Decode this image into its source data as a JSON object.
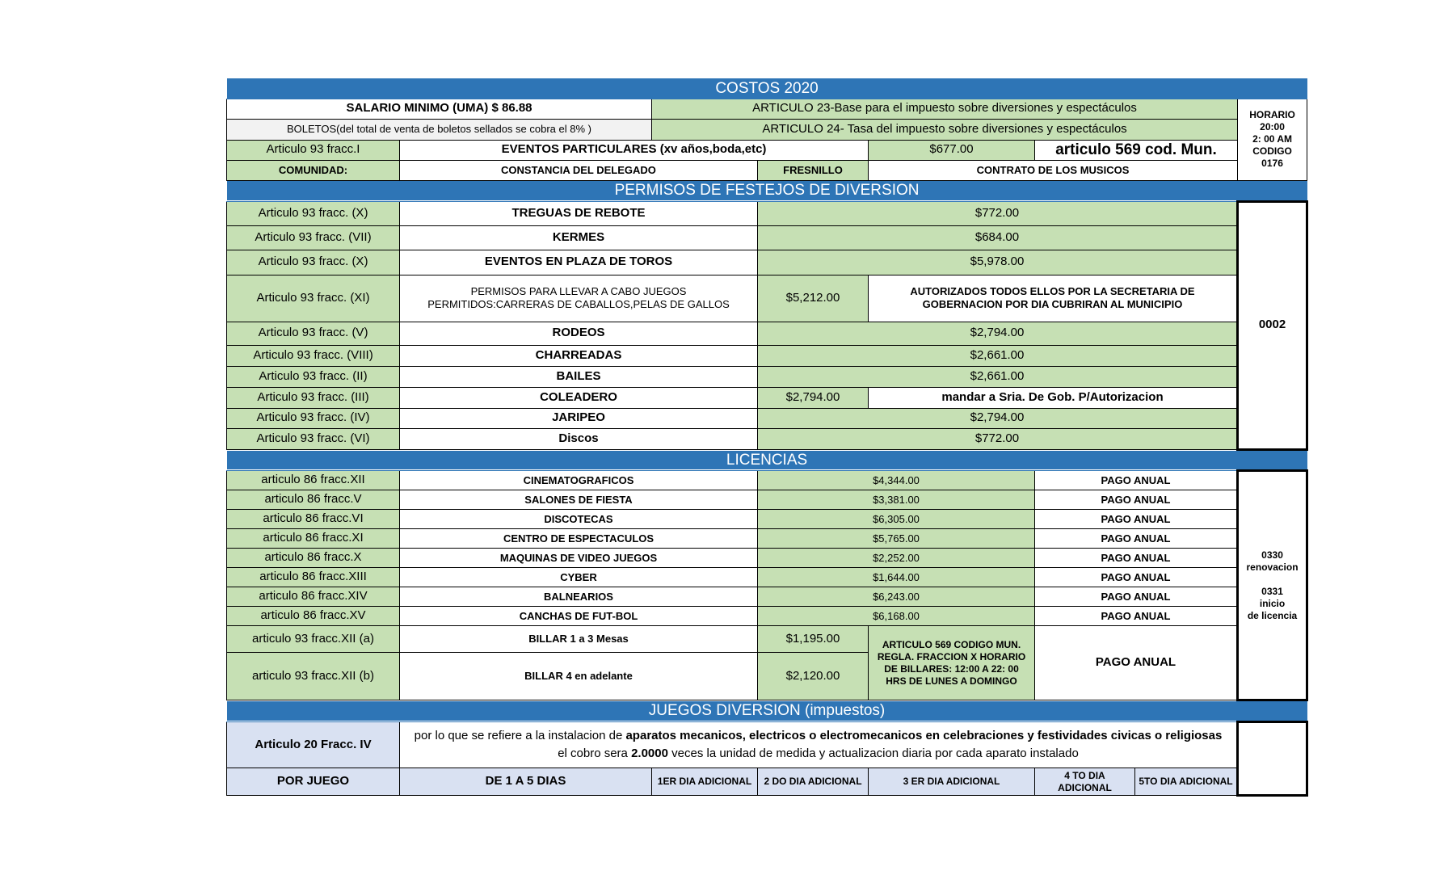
{
  "title": "COSTOS 2020",
  "salario": "SALARIO MINIMO (UMA)     $ 86.88",
  "boletos": "BOLETOS(del total de venta de boletos sellados se cobra el  8% )",
  "art23": "ARTICULO 23-Base para el impuesto sobre diversiones y espectáculos",
  "art24": "ARTICULO 24- Tasa del impuesto sobre diversiones y espectáculos",
  "horario_lines": [
    "HORARIO",
    "20:00",
    "2: 00 AM",
    "CODIGO",
    "0176"
  ],
  "eventos_row": {
    "article": "Articulo 93  fracc.I",
    "name": "EVENTOS PARTICULARES (xv años,boda,etc)",
    "cost": "$677.00",
    "note": "articulo 569 cod. Mun."
  },
  "comunidad_row": {
    "label": "COMUNIDAD:",
    "constancia": "CONSTANCIA DEL DELEGADO",
    "place": "FRESNILLO",
    "contrato": "CONTRATO DE LOS MUSICOS"
  },
  "permisos": {
    "header": "PERMISOS DE FESTEJOS DE DIVERSION",
    "code": "0002",
    "rows": [
      {
        "article": "Articulo 93 fracc.   (X)",
        "name": "TREGUAS DE REBOTE",
        "cost": "$772.00"
      },
      {
        "article": "Articulo 93 fracc.   (VII)",
        "name": "KERMES",
        "cost": "$684.00"
      },
      {
        "article": "Articulo 93 fracc.   (X)",
        "name": "EVENTOS EN PLAZA DE TOROS",
        "cost": "$5,978.00"
      },
      {
        "article": "Articulo 93 fracc.   (XI)",
        "name_lines": [
          "PERMISOS PARA LLEVAR A CABO JUEGOS",
          "PERMITIDOS:CARRERAS DE CABALLOS,PELAS DE GALLOS"
        ],
        "cost": "$5,212.00",
        "note_lines": [
          "AUTORIZADOS TODOS ELLOS POR LA SECRETARIA DE",
          "GOBERNACION POR DIA CUBRIRAN AL MUNICIPIO"
        ]
      },
      {
        "article": "Articulo 93 fracc.   (V)",
        "name": "RODEOS",
        "cost": "$2,794.00"
      },
      {
        "article": "Articulo 93 fracc.   (VIII)",
        "name": "CHARREADAS",
        "cost": "$2,661.00"
      },
      {
        "article": "Articulo 93 fracc.   (II)",
        "name": "BAILES",
        "cost": "$2,661.00"
      },
      {
        "article": "Articulo 93 fracc.  (III)",
        "name": "COLEADERO",
        "cost": "$2,794.00",
        "note": "mandar a Sria. De Gob. P/Autorizacion"
      },
      {
        "article": "Articulo 93  fracc. (IV)",
        "name": "JARIPEO",
        "cost": "$2,794.00"
      },
      {
        "article": "Articulo 93 fracc.  (VI)",
        "name": "Discos",
        "cost": "$772.00"
      }
    ]
  },
  "licencias": {
    "header": "LICENCIAS",
    "code_lines": [
      "0330",
      "renovacion",
      "",
      "0331",
      "inicio",
      "de licencia"
    ],
    "rows": [
      {
        "article": "articulo 86  fracc.XII",
        "name": "CINEMATOGRAFICOS",
        "cost": "$4,344.00",
        "payment": "PAGO ANUAL"
      },
      {
        "article": "articulo 86  fracc.V",
        "name": "SALONES DE FIESTA",
        "cost": "$3,381.00",
        "payment": "PAGO ANUAL"
      },
      {
        "article": "articulo 86  fracc.VI",
        "name": "DISCOTECAS",
        "cost": "$6,305.00",
        "payment": "PAGO ANUAL"
      },
      {
        "article": "articulo 86  fracc.XI",
        "name": "CENTRO DE ESPECTACULOS",
        "cost": "$5,765.00",
        "payment": "PAGO ANUAL"
      },
      {
        "article": "articulo 86  fracc.X",
        "name": "MAQUINAS DE VIDEO JUEGOS",
        "cost": "$2,252.00",
        "payment": "PAGO ANUAL"
      },
      {
        "article": "articulo 86  fracc.XIII",
        "name": "CYBER",
        "cost": "$1,644.00",
        "payment": "PAGO ANUAL"
      },
      {
        "article": "articulo 86  fracc.XIV",
        "name": "BALNEARIOS",
        "cost": "$6,243.00",
        "payment": "PAGO ANUAL"
      },
      {
        "article": "articulo 86  fracc.XV",
        "name": "CANCHAS DE FUT-BOL",
        "cost": "$6,168.00",
        "payment": "PAGO ANUAL"
      }
    ],
    "billar": [
      {
        "article": "articulo 93 fracc.XII (a)",
        "name": "BILLAR 1 a 3 Mesas",
        "cost": "$1,195.00"
      },
      {
        "article": "articulo  93 fracc.XII (b)",
        "name": "BILLAR   4 en adelante",
        "cost": "$2,120.00"
      }
    ],
    "billar_note_lines": [
      "ARTICULO 569 CODIGO MUN.",
      "REGLA. FRACCION X HORARIO",
      "DE BILLARES: 12:00 A 22: 00",
      "HRS DE LUNES A DOMINGO"
    ],
    "billar_payment": "PAGO ANUAL"
  },
  "juegos": {
    "header": "JUEGOS DIVERSION (impuestos)",
    "article": "Articulo 20 Fracc. IV",
    "description": [
      {
        "text": "por lo que se refiere a la instalacion de ",
        "bold": false
      },
      {
        "text": "aparatos mecanicos, electricos o electromecanicos en celebraciones y festividades civicas o religiosas",
        "bold": true
      },
      {
        "text": " el cobro sera ",
        "bold": false
      },
      {
        "text": "2.0000",
        "bold": true
      },
      {
        "text": " veces la unidad de medida y actualizacion diaria por cada aparato instalado",
        "bold": false
      }
    ],
    "columns": [
      "POR JUEGO",
      "DE 1 A 5 DIAS",
      "1ER DIA ADICIONAL",
      "2 DO DIA ADICIONAL",
      "3 ER DIA ADICIONAL",
      "4 TO DIA ADICIONAL",
      "5TO DIA ADICIONAL"
    ]
  },
  "colors": {
    "header_blue": "#2e75b6",
    "cell_green": "#c6e0b4",
    "cell_light_blue": "#d9e1f2"
  }
}
